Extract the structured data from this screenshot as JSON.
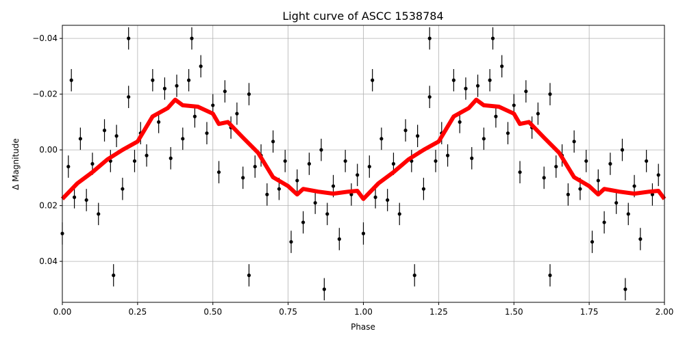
{
  "chart_data": {
    "type": "scatter",
    "title": "Light curve of ASCC 1538784",
    "xlabel": "Phase",
    "ylabel": "Δ Magnitude",
    "xlim": [
      0,
      2
    ],
    "ylim": [
      0.0547,
      -0.0447
    ],
    "y_inverted": true,
    "grid": true,
    "xticks": [
      0,
      0.25,
      0.5,
      0.75,
      1.0,
      1.25,
      1.5,
      1.75,
      2.0
    ],
    "xtick_labels": [
      "0.00",
      "0.25",
      "0.50",
      "0.75",
      "1.00",
      "1.25",
      "1.50",
      "1.75",
      "2.00"
    ],
    "yticks": [
      -0.04,
      -0.02,
      0.0,
      0.02,
      0.04
    ],
    "ytick_labels": [
      "−0.04",
      "−0.02",
      "0.00",
      "0.02",
      "0.04"
    ],
    "colors": {
      "points": "#000000",
      "binned": "#ff0000",
      "grid": "#b0b0b0"
    },
    "phase_repeated": true,
    "observations": [
      [
        0.0,
        0.03,
        0.004
      ],
      [
        0.02,
        0.006,
        0.004
      ],
      [
        0.04,
        0.017,
        0.004
      ],
      [
        0.06,
        -0.004,
        0.004
      ],
      [
        0.08,
        0.018,
        0.004
      ],
      [
        0.1,
        0.005,
        0.004
      ],
      [
        0.12,
        0.023,
        0.004
      ],
      [
        0.14,
        -0.007,
        0.004
      ],
      [
        0.16,
        0.004,
        0.004
      ],
      [
        0.18,
        -0.005,
        0.004
      ],
      [
        0.2,
        0.014,
        0.004
      ],
      [
        0.22,
        -0.019,
        0.004
      ],
      [
        0.24,
        0.004,
        0.004
      ],
      [
        0.26,
        -0.006,
        0.004
      ],
      [
        0.28,
        0.002,
        0.004
      ],
      [
        0.3,
        -0.025,
        0.004
      ],
      [
        0.32,
        -0.01,
        0.004
      ],
      [
        0.34,
        -0.022,
        0.004
      ],
      [
        0.36,
        0.003,
        0.004
      ],
      [
        0.38,
        -0.023,
        0.004
      ],
      [
        0.4,
        -0.004,
        0.004
      ],
      [
        0.42,
        -0.025,
        0.004
      ],
      [
        0.44,
        -0.012,
        0.004
      ],
      [
        0.46,
        -0.03,
        0.004
      ],
      [
        0.48,
        -0.006,
        0.004
      ],
      [
        0.5,
        -0.016,
        0.004
      ],
      [
        0.52,
        0.008,
        0.004
      ],
      [
        0.54,
        -0.021,
        0.004
      ],
      [
        0.56,
        -0.008,
        0.004
      ],
      [
        0.58,
        -0.013,
        0.004
      ],
      [
        0.6,
        0.01,
        0.004
      ],
      [
        0.62,
        -0.02,
        0.004
      ],
      [
        0.64,
        0.006,
        0.004
      ],
      [
        0.66,
        0.002,
        0.004
      ],
      [
        0.68,
        0.016,
        0.004
      ],
      [
        0.7,
        -0.003,
        0.004
      ],
      [
        0.72,
        0.014,
        0.004
      ],
      [
        0.74,
        0.004,
        0.004
      ],
      [
        0.76,
        0.033,
        0.004
      ],
      [
        0.78,
        0.011,
        0.004
      ],
      [
        0.8,
        0.026,
        0.004
      ],
      [
        0.82,
        0.005,
        0.004
      ],
      [
        0.84,
        0.019,
        0.004
      ],
      [
        0.86,
        0.0,
        0.004
      ],
      [
        0.88,
        0.023,
        0.004
      ],
      [
        0.9,
        0.013,
        0.004
      ],
      [
        0.92,
        0.032,
        0.004
      ],
      [
        0.94,
        0.004,
        0.004
      ],
      [
        0.96,
        0.016,
        0.004
      ],
      [
        0.98,
        0.009,
        0.004
      ],
      [
        0.17,
        0.045,
        0.004
      ],
      [
        0.03,
        -0.025,
        0.004
      ],
      [
        0.87,
        0.05,
        0.004
      ],
      [
        0.22,
        -0.04,
        0.004
      ],
      [
        0.62,
        0.045,
        0.004
      ],
      [
        0.43,
        -0.04,
        0.004
      ]
    ],
    "binned_curve": [
      [
        0,
        0.0176
      ],
      [
        0.05,
        0.012
      ],
      [
        0.1,
        0.008
      ],
      [
        0.15,
        0.0034
      ],
      [
        0.2,
        0
      ],
      [
        0.25,
        -0.003
      ],
      [
        0.3,
        -0.012
      ],
      [
        0.35,
        -0.015
      ],
      [
        0.375,
        -0.018
      ],
      [
        0.4,
        -0.016
      ],
      [
        0.45,
        -0.0155
      ],
      [
        0.5,
        -0.013
      ],
      [
        0.52,
        -0.0093
      ],
      [
        0.55,
        -0.01
      ],
      [
        0.6,
        -0.0044
      ],
      [
        0.65,
        0.001
      ],
      [
        0.7,
        0.0098
      ],
      [
        0.75,
        0.013
      ],
      [
        0.78,
        0.016
      ],
      [
        0.8,
        0.014
      ],
      [
        0.85,
        0.015
      ],
      [
        0.9,
        0.0157
      ],
      [
        0.95,
        0.015
      ],
      [
        0.98,
        0.0147
      ],
      [
        1.0,
        0.0176
      ]
    ]
  }
}
